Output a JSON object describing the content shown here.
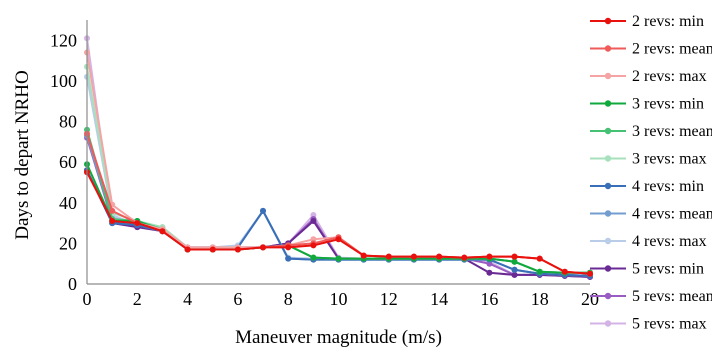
{
  "chart_data": {
    "type": "line",
    "title": "",
    "xlabel": "Maneuver magnitude (m/s)",
    "ylabel": "Days to depart NRHO",
    "xlim": [
      0,
      20
    ],
    "ylim": [
      0,
      130
    ],
    "xticks": [
      0,
      2,
      4,
      6,
      8,
      10,
      12,
      14,
      16,
      18,
      20
    ],
    "yticks": [
      0,
      20,
      40,
      60,
      80,
      100,
      120
    ],
    "grid": false,
    "legend_position": "right",
    "x": [
      0,
      1,
      2,
      3,
      4,
      5,
      6,
      7,
      8,
      9,
      10,
      11,
      12,
      13,
      14,
      15,
      16,
      17,
      18,
      19,
      20
    ],
    "series": [
      {
        "name": "2 revs: min",
        "color": "#e8110e",
        "values": [
          55,
          31,
          30,
          26,
          17,
          17,
          17,
          18,
          18,
          19,
          22,
          14,
          13.5,
          13.5,
          13.5,
          13,
          13.5,
          13.5,
          12.5,
          6,
          5
        ]
      },
      {
        "name": "2 revs: mean",
        "color": "#ef5a5a",
        "values": [
          74,
          36,
          30,
          26,
          17,
          17,
          17,
          18,
          19,
          20,
          23,
          14,
          13.5,
          13.5,
          13.5,
          13,
          13.5,
          13.5,
          12.5,
          6,
          5
        ]
      },
      {
        "name": "2 revs: max",
        "color": "#f5a3a3",
        "values": [
          114,
          39,
          30,
          27,
          18,
          18,
          18,
          18,
          19,
          22,
          23,
          14,
          13.5,
          13.5,
          13.5,
          13,
          13.5,
          13.5,
          12.5,
          6,
          5
        ]
      },
      {
        "name": "3 revs: min",
        "color": "#11a83e",
        "values": [
          59,
          31,
          31,
          26,
          17,
          17,
          17,
          18,
          19,
          13,
          12.5,
          12.5,
          12.5,
          12.5,
          12.5,
          12.5,
          12.5,
          11,
          6,
          5.5,
          5.5
        ]
      },
      {
        "name": "3 revs: mean",
        "color": "#45c173",
        "values": [
          76,
          32,
          31,
          27,
          17,
          17,
          17,
          18,
          19,
          13,
          12.5,
          12.5,
          12.5,
          12.5,
          12.5,
          12.5,
          12.5,
          11,
          6,
          5.5,
          5.5
        ]
      },
      {
        "name": "3 revs: max",
        "color": "#a7e0bc",
        "values": [
          107,
          35,
          31,
          28,
          18,
          18,
          18,
          18,
          19,
          13,
          12.5,
          12.5,
          12.5,
          12.5,
          12.5,
          12.5,
          12.5,
          11,
          6,
          5.5,
          5.5
        ]
      },
      {
        "name": "4 revs: min",
        "color": "#3a6fb8",
        "values": [
          56,
          30,
          29,
          26,
          17,
          17,
          18,
          36,
          12.5,
          12,
          12,
          12,
          12,
          12,
          12,
          12,
          12,
          7,
          5,
          4.5,
          4
        ]
      },
      {
        "name": "4 revs: mean",
        "color": "#739ccf",
        "values": [
          73,
          32,
          29,
          26,
          17,
          17,
          18,
          36,
          12.5,
          12,
          12,
          12,
          12,
          12,
          12,
          12,
          12,
          7,
          5,
          4.5,
          4
        ]
      },
      {
        "name": "4 revs: max",
        "color": "#b9cde9",
        "values": [
          102,
          34,
          29,
          27,
          18,
          18,
          19,
          36,
          13,
          12.5,
          12,
          12,
          12,
          12,
          12,
          12,
          12,
          7,
          5,
          4.5,
          4
        ]
      },
      {
        "name": "5 revs: min",
        "color": "#6a2a94",
        "values": [
          56,
          30,
          28,
          26,
          17.5,
          17.5,
          17.5,
          18,
          20,
          31,
          12.5,
          12.5,
          12.5,
          12.5,
          12.5,
          12.5,
          5.5,
          4.5,
          4.5,
          4,
          3.5
        ]
      },
      {
        "name": "5 revs: mean",
        "color": "#9a5cc3",
        "values": [
          72,
          31,
          28,
          27,
          18,
          18,
          18,
          18,
          20,
          32,
          12.5,
          12.5,
          12.5,
          12.5,
          12.5,
          12.5,
          10,
          4.5,
          4.5,
          4,
          3.5
        ]
      },
      {
        "name": "5 revs: max",
        "color": "#d3b3e6",
        "values": [
          121,
          33,
          29,
          28,
          18,
          18,
          18,
          18,
          20,
          34,
          13,
          12.5,
          12.5,
          12.5,
          12.5,
          12.5,
          11,
          4.5,
          4.5,
          4,
          3.5
        ]
      }
    ]
  }
}
